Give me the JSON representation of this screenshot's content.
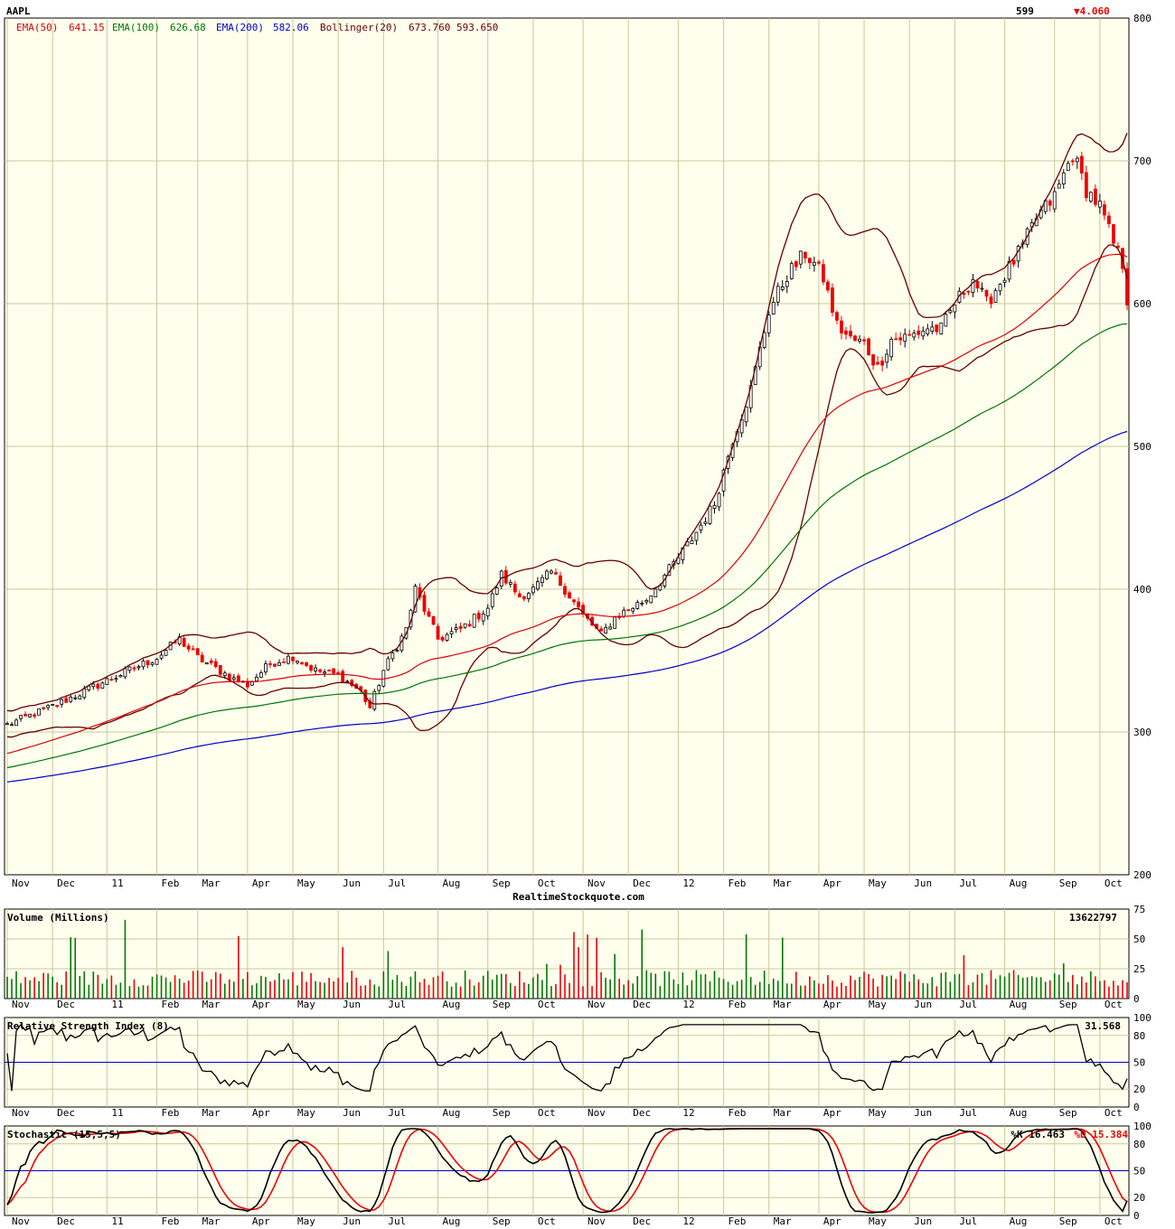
{
  "header": {
    "symbol": "AAPL",
    "last_price": "599",
    "change": "▼4.060",
    "change_color": "#ee0000",
    "watermark": "RealtimeStockquote.com"
  },
  "colors": {
    "panel_bg": "#ffffee",
    "grid": "#c8c89a",
    "up": "#007700",
    "down": "#ee0000",
    "ema50": "#dd0000",
    "ema100": "#007700",
    "ema200": "#0000cc",
    "bollinger": "#660000",
    "midline": "#0000cc",
    "k_line": "#000000",
    "d_line": "#ee0000"
  },
  "x_axis": {
    "months": [
      "Nov",
      "Dec",
      "11",
      "Feb",
      "Mar",
      "Apr",
      "May",
      "Jun",
      "Jul",
      "Aug",
      "Sep",
      "Oct",
      "Nov",
      "Dec",
      "12",
      "Feb",
      "Mar",
      "Apr",
      "May",
      "Jun",
      "Jul",
      "Aug",
      "Sep",
      "Oct"
    ],
    "month_index": [
      0,
      10,
      22,
      33,
      42,
      53,
      63,
      73,
      83,
      95,
      106,
      116,
      127,
      137,
      148,
      158,
      168,
      179,
      189,
      199,
      209,
      220,
      231,
      241
    ],
    "total_bars": 248
  },
  "price_panel": {
    "legend": [
      {
        "label": "EMA(50)",
        "value": "641.15",
        "color": "#dd0000"
      },
      {
        "label": "EMA(100)",
        "value": "626.68",
        "color": "#007700"
      },
      {
        "label": "EMA(200)",
        "value": "582.06",
        "color": "#0000cc"
      },
      {
        "label": "Bollinger(20)",
        "value": "673.760 593.650",
        "color": "#660000"
      }
    ],
    "y_ticks": [
      "800",
      "700",
      "600",
      "500",
      "400",
      "300",
      "200"
    ]
  },
  "volume_panel": {
    "title": "Volume (Millions)",
    "last_value": "13622797",
    "y_ticks": [
      "75",
      "50",
      "25",
      "0"
    ]
  },
  "rsi_panel": {
    "title": "Relative Strength Index (8)",
    "last_value": "31.568",
    "y_ticks": [
      "100",
      "80",
      "50",
      "20",
      "0"
    ]
  },
  "stoch_panel": {
    "title": "Stochastic (15,5,5)",
    "k_label": "%K 16.463",
    "d_label": "%D 15.384",
    "y_ticks": [
      "100",
      "80",
      "50",
      "20",
      "0"
    ]
  },
  "chart_data": {
    "type": "candlestick",
    "symbol": "AAPL",
    "y_price_range": [
      200,
      800
    ],
    "price_keypoints": [
      [
        0,
        305
      ],
      [
        10,
        318
      ],
      [
        22,
        336
      ],
      [
        33,
        352
      ],
      [
        38,
        365
      ],
      [
        42,
        352
      ],
      [
        50,
        337
      ],
      [
        53,
        333
      ],
      [
        58,
        348
      ],
      [
        63,
        353
      ],
      [
        68,
        343
      ],
      [
        73,
        340
      ],
      [
        78,
        328
      ],
      [
        80,
        317
      ],
      [
        83,
        343
      ],
      [
        88,
        372
      ],
      [
        90,
        400
      ],
      [
        95,
        365
      ],
      [
        100,
        372
      ],
      [
        106,
        387
      ],
      [
        109,
        410
      ],
      [
        113,
        395
      ],
      [
        116,
        400
      ],
      [
        120,
        412
      ],
      [
        123,
        400
      ],
      [
        127,
        382
      ],
      [
        131,
        368
      ],
      [
        134,
        380
      ],
      [
        137,
        386
      ],
      [
        141,
        393
      ],
      [
        148,
        422
      ],
      [
        152,
        440
      ],
      [
        156,
        460
      ],
      [
        160,
        505
      ],
      [
        164,
        540
      ],
      [
        168,
        595
      ],
      [
        172,
        620
      ],
      [
        176,
        635
      ],
      [
        178,
        628
      ],
      [
        180,
        618
      ],
      [
        183,
        585
      ],
      [
        186,
        575
      ],
      [
        189,
        572
      ],
      [
        192,
        555
      ],
      [
        195,
        575
      ],
      [
        199,
        577
      ],
      [
        203,
        583
      ],
      [
        206,
        582
      ],
      [
        209,
        600
      ],
      [
        213,
        618
      ],
      [
        216,
        600
      ],
      [
        220,
        620
      ],
      [
        224,
        640
      ],
      [
        227,
        660
      ],
      [
        231,
        675
      ],
      [
        235,
        705
      ],
      [
        238,
        680
      ],
      [
        241,
        668
      ],
      [
        244,
        642
      ],
      [
        246,
        628
      ],
      [
        247,
        599
      ]
    ],
    "volume_range_millions": [
      0,
      75
    ],
    "rsi_range": [
      0,
      100
    ],
    "stochastic_range": [
      0,
      100
    ],
    "last_values": {
      "close": 599,
      "change": -4.06,
      "ema50": 641.15,
      "ema100": 626.68,
      "ema200": 582.06,
      "bollinger_upper": 673.76,
      "bollinger_lower": 593.65,
      "volume": 13622797,
      "rsi8": 31.568,
      "stoch_k": 16.463,
      "stoch_d": 15.384
    }
  }
}
